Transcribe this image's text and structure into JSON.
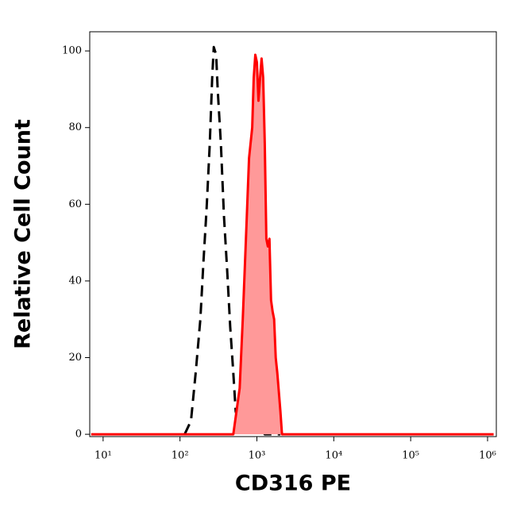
{
  "chart_data": {
    "type": "histogram-overlay",
    "xlabel": "CD316 PE",
    "ylabel": "Relative Cell Count",
    "xscale": "log",
    "xlim": [
      6.7,
      1300000
    ],
    "ylim": [
      -0.6,
      105
    ],
    "xticks": [
      {
        "value": 10,
        "label": "10¹"
      },
      {
        "value": 100,
        "label": "10²"
      },
      {
        "value": 1000,
        "label": "10³"
      },
      {
        "value": 10000,
        "label": "10⁴"
      },
      {
        "value": 100000,
        "label": "10⁵"
      },
      {
        "value": 1000000,
        "label": "10⁶"
      }
    ],
    "yticks": [
      0,
      20,
      40,
      60,
      80,
      100
    ],
    "series": [
      {
        "color": "#000000",
        "dash": true,
        "fill": null,
        "x": [
          115,
          139,
          160,
          184,
          202,
          222,
          244,
          262,
          275,
          295,
          309,
          340,
          373,
          410,
          450,
          494,
          530,
          569,
          625,
          703,
          791,
          1000,
          1125,
          1265,
          2024
        ],
        "values": [
          0,
          3.5,
          16,
          30,
          45,
          59,
          76,
          93,
          101,
          99,
          90,
          76,
          57,
          43,
          28,
          16,
          6,
          3.5,
          1.5,
          2.5,
          0.4,
          0.4,
          1.5,
          0,
          0
        ]
      },
      {
        "color": "#ff0000",
        "dash": false,
        "fill": "#ff9999",
        "x": [
          7,
          494,
          597,
          655,
          720,
          791,
          869,
          910,
          954,
          1000,
          1048,
          1099,
          1151,
          1207,
          1265,
          1326,
          1389,
          1456,
          1526,
          1600,
          1677,
          1758,
          1842,
          2024,
          2121,
          1200000
        ],
        "values": [
          0,
          0,
          12,
          30,
          51,
          72,
          80,
          93,
          99,
          97,
          87,
          93,
          98,
          93,
          76,
          51,
          49,
          51,
          35,
          32,
          30,
          20,
          16,
          6,
          0,
          0
        ]
      }
    ]
  }
}
